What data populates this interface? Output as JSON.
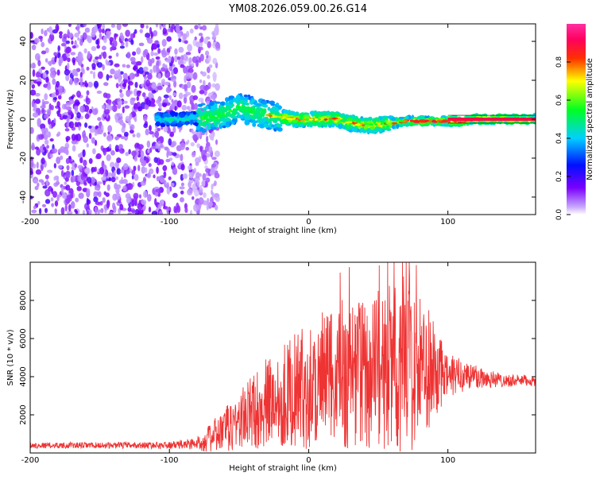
{
  "figure_title": "YM08.2026.059.00.26.G14",
  "colors": {
    "snr_line": "#ee3333",
    "frame": "#000000"
  },
  "chart_data": [
    {
      "type": "heatmap",
      "id": "spectrogram",
      "xlabel": "Height of straight line (km)",
      "ylabel": "Frequency (Hz)",
      "xlim": [
        -200,
        163
      ],
      "ylim": [
        -49,
        49
      ],
      "xticks": [
        -200,
        -100,
        0,
        100
      ],
      "yticks": [
        -40,
        -20,
        0,
        20,
        40
      ],
      "colorbar": {
        "label": "Normalized spectral amplitude",
        "range": [
          0,
          1
        ],
        "ticks": [
          "0.0",
          "0.2",
          "0.4",
          "0.6",
          "0.8"
        ],
        "tick_values": [
          0.0,
          0.2,
          0.4,
          0.6,
          0.8
        ],
        "colormap": "rainbow (violet -> blue -> cyan -> green -> yellow -> red -> magenta)"
      },
      "ridge": {
        "description": "dominant Doppler frequency ridge vs height",
        "x": [
          -110,
          -90,
          -70,
          -60,
          -50,
          -40,
          -30,
          -20,
          -10,
          0,
          10,
          20,
          30,
          40,
          50,
          60,
          70,
          80,
          90,
          100,
          110,
          120,
          130,
          140,
          150,
          163
        ],
        "frequency": [
          0,
          0,
          1,
          3,
          6,
          4,
          2,
          1,
          0,
          0,
          0,
          0,
          -2,
          -3,
          -3,
          -2,
          -1,
          -1,
          -1,
          -1,
          -1,
          0,
          0,
          0,
          0,
          0
        ]
      },
      "noise_region_x": [
        -200,
        -75
      ]
    },
    {
      "type": "line",
      "id": "snr",
      "xlabel": "Height of straight line (km)",
      "ylabel": "SNR (10 * v/v)",
      "xlim": [
        -200,
        163
      ],
      "ylim": [
        0,
        10000
      ],
      "xticks": [
        -200,
        -100,
        0,
        100
      ],
      "yticks": [
        2000,
        4000,
        6000,
        8000
      ],
      "envelope": {
        "x": [
          -200,
          -100,
          -80,
          -70,
          -60,
          -50,
          -40,
          -30,
          -20,
          -10,
          0,
          10,
          20,
          30,
          40,
          50,
          60,
          70,
          80,
          90,
          100,
          110,
          120,
          130,
          140,
          150,
          163
        ],
        "mean": [
          400,
          400,
          500,
          800,
          1200,
          1700,
          2200,
          2600,
          3000,
          3300,
          3500,
          3800,
          4000,
          4100,
          4200,
          4300,
          4500,
          4600,
          4400,
          4200,
          4000,
          4100,
          4000,
          3900,
          3800,
          3800,
          3800
        ],
        "spread": [
          150,
          180,
          350,
          800,
          1200,
          1600,
          2000,
          2400,
          2700,
          3000,
          3300,
          3600,
          3800,
          4000,
          4100,
          4200,
          4500,
          4800,
          3800,
          2500,
          1200,
          900,
          700,
          500,
          350,
          300,
          300
        ],
        "peak": {
          "x": 70,
          "y": 10000
        }
      }
    }
  ]
}
